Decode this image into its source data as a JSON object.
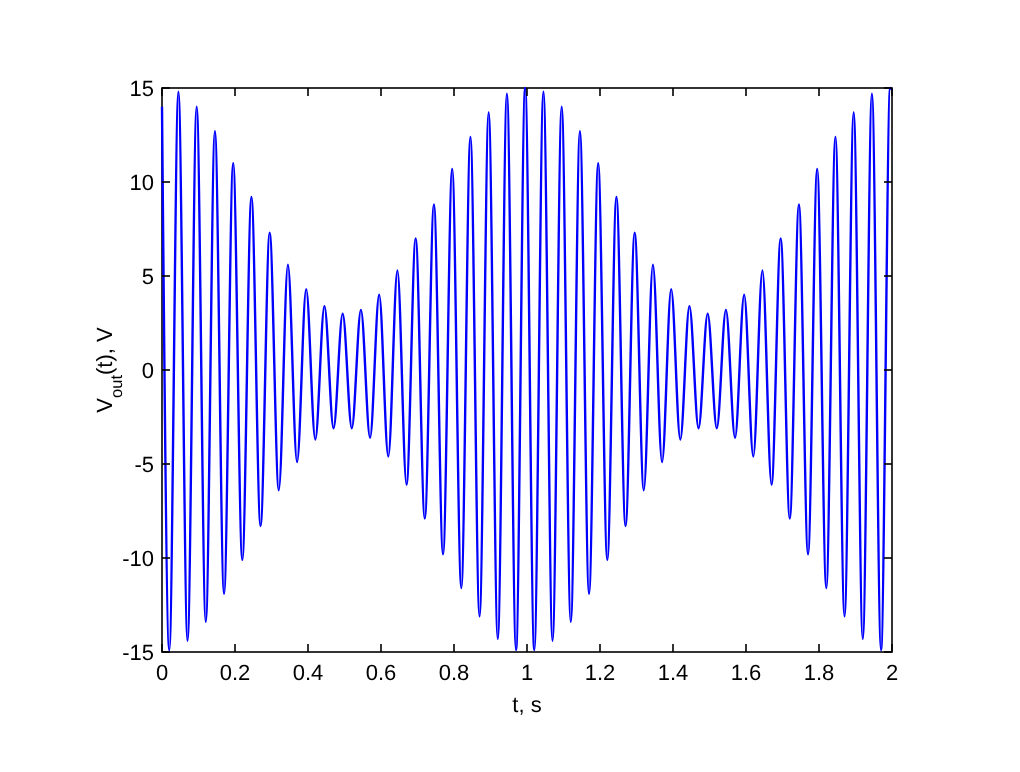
{
  "chart_data": {
    "type": "line",
    "xlabel": "t, s",
    "ylabel": "V$_{out}$(t), V",
    "color": "#0000ff",
    "line_style": "solid",
    "marker": "none",
    "grid": false,
    "xlim": [
      0,
      2
    ],
    "xticks": [
      0,
      0.2,
      0.4,
      0.6,
      0.8,
      1,
      1.2,
      1.4,
      1.6,
      1.8,
      2
    ],
    "ylim": [
      -15,
      15
    ],
    "yticks": [
      -15,
      -10,
      -5,
      0,
      5,
      10,
      15
    ],
    "x": [
      0,
      0.02,
      0.045,
      0.07,
      0.095,
      0.12,
      0.145,
      0.17,
      0.195,
      0.22,
      0.245,
      0.27,
      0.295,
      0.32,
      0.345,
      0.37,
      0.395,
      0.42,
      0.445,
      0.47,
      0.495,
      0.52,
      0.545,
      0.57,
      0.595,
      0.62,
      0.645,
      0.67,
      0.695,
      0.72,
      0.745,
      0.77,
      0.795,
      0.82,
      0.845,
      0.87,
      0.895,
      0.92,
      0.945,
      0.97,
      0.995,
      1.02,
      1.045,
      1.07,
      1.095,
      1.12,
      1.145,
      1.17,
      1.195,
      1.22,
      1.245,
      1.27,
      1.295,
      1.32,
      1.345,
      1.37,
      1.395,
      1.42,
      1.445,
      1.47,
      1.495,
      1.52,
      1.545,
      1.57,
      1.595,
      1.62,
      1.645,
      1.67,
      1.695,
      1.72,
      1.745,
      1.77,
      1.795,
      1.82,
      1.845,
      1.87,
      1.895,
      1.92,
      1.945,
      1.97,
      1.995,
      2
    ],
    "values": [
      14,
      -14.9,
      14.8,
      -14.4,
      14.0,
      -13.4,
      12.7,
      -11.9,
      11.0,
      -10.1,
      9.2,
      -8.3,
      7.3,
      -6.4,
      5.6,
      -4.9,
      4.3,
      -3.7,
      3.4,
      -3.1,
      3.0,
      -3.1,
      3.2,
      -3.6,
      4.0,
      -4.6,
      5.3,
      -6.1,
      7.0,
      -7.9,
      8.8,
      -9.8,
      10.7,
      -11.6,
      12.4,
      -13.1,
      13.7,
      -14.3,
      14.7,
      -14.9,
      15.0,
      -14.9,
      14.8,
      -14.4,
      14.0,
      -13.4,
      12.7,
      -11.9,
      11.0,
      -10.1,
      9.2,
      -8.3,
      7.3,
      -6.4,
      5.6,
      -4.9,
      4.3,
      -3.7,
      3.4,
      -3.1,
      3.0,
      -3.1,
      3.2,
      -3.6,
      4.0,
      -4.6,
      5.3,
      -6.1,
      7.0,
      -7.9,
      8.8,
      -9.8,
      10.7,
      -11.6,
      12.4,
      -13.1,
      13.7,
      -14.3,
      14.7,
      -14.9,
      15.0,
      14.9
    ]
  }
}
